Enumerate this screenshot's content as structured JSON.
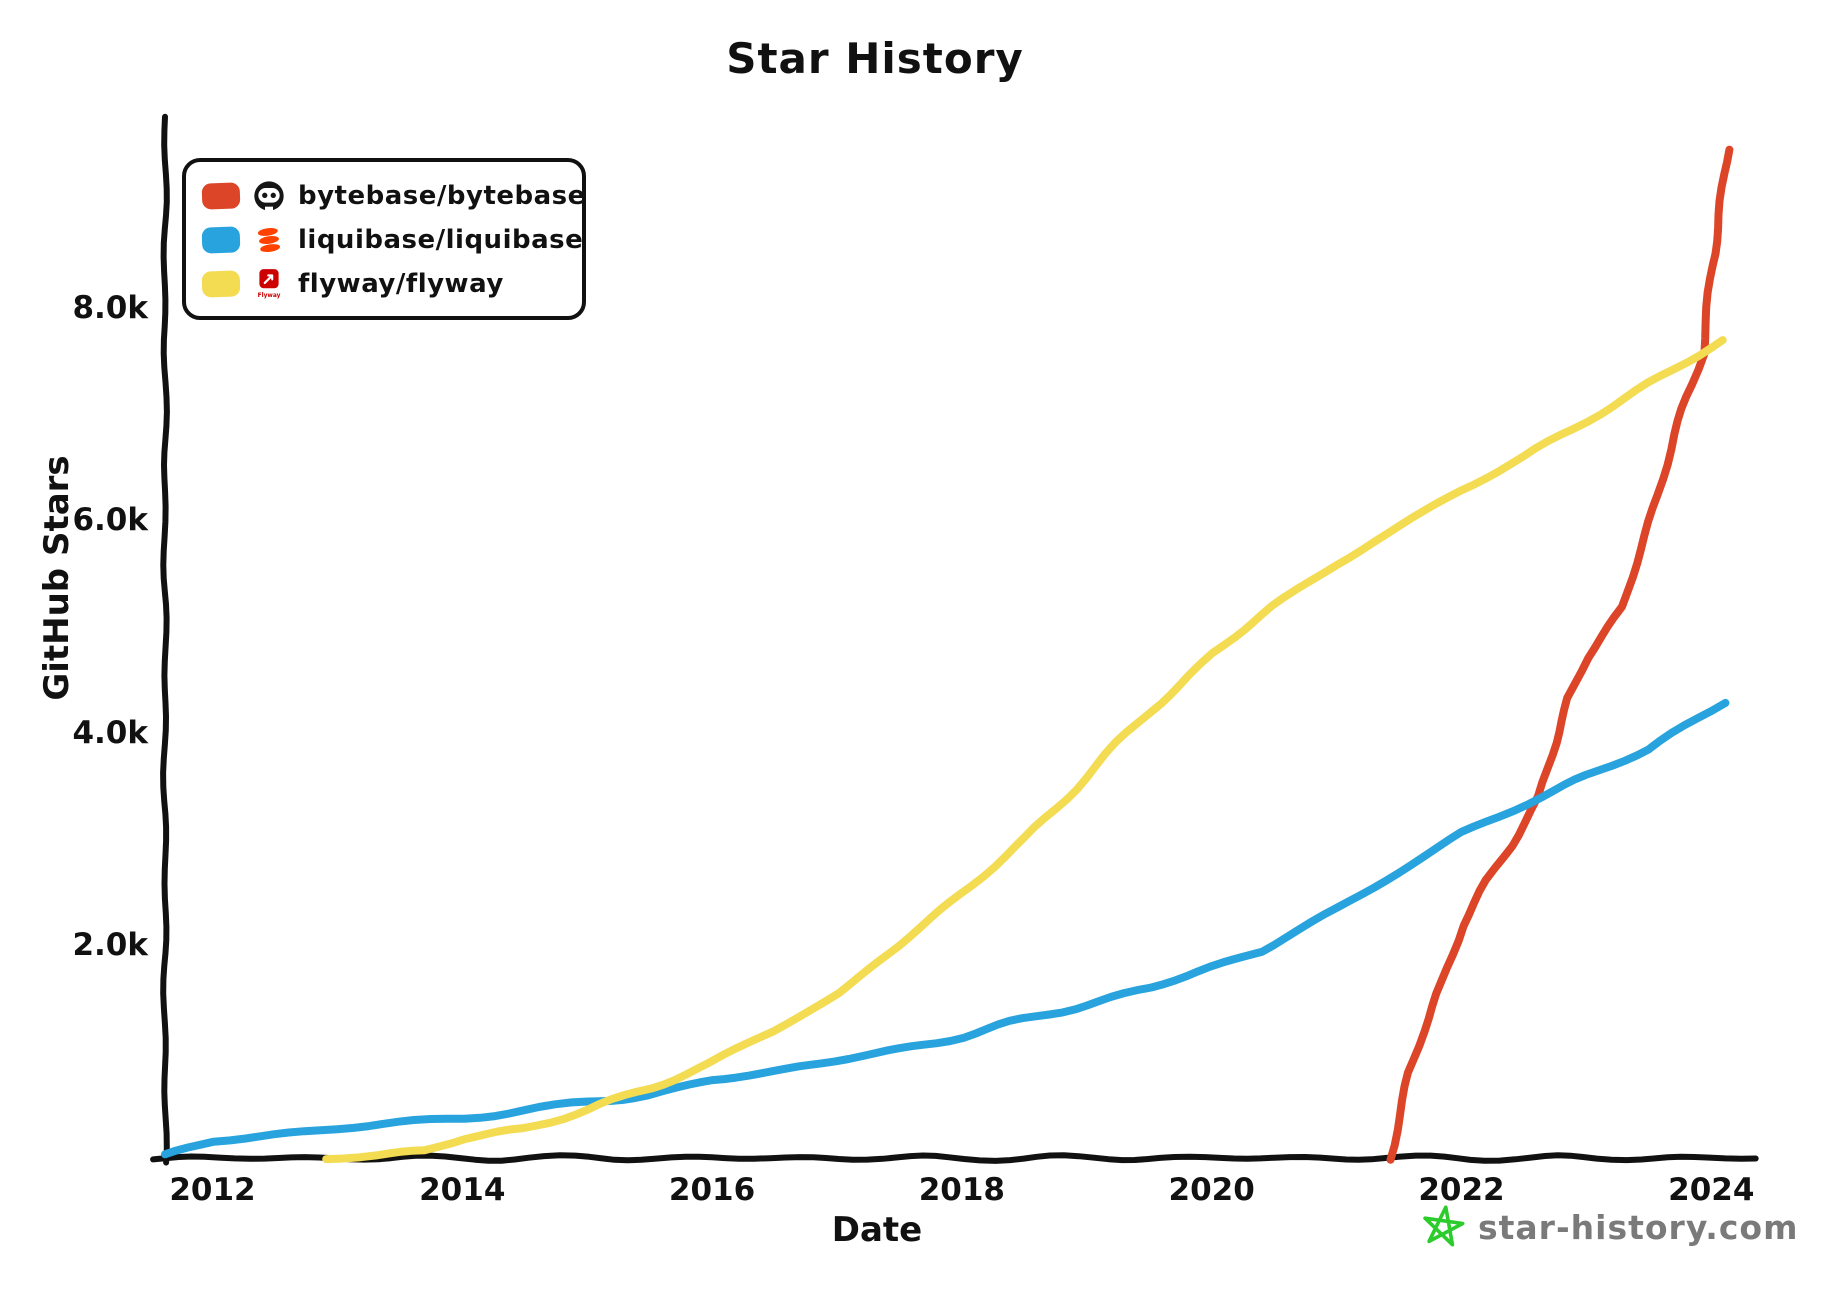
{
  "legend": {
    "items": [
      {
        "label": "bytebase/bytebase",
        "color": "#dd4528",
        "logo": "bytebase-logo"
      },
      {
        "label": "liquibase/liquibase",
        "color": "#28a3dd",
        "logo": "liquibase-logo"
      },
      {
        "label": "flyway/flyway",
        "color": "#f3db52",
        "logo": "flyway-logo",
        "logo_text": "Flyway"
      }
    ]
  },
  "watermark": {
    "text": "star-history.com",
    "icon": "star-icon",
    "icon_color": "#2bcc2b",
    "text_color": "#7a7a7a"
  },
  "chart_data": {
    "type": "line",
    "title": "Star History",
    "xlabel": "Date",
    "ylabel": "GitHub Stars",
    "xlim": [
      2011.58,
      2024.35
    ],
    "ylim": [
      0,
      9800
    ],
    "grid": false,
    "legend_position": "top-left",
    "x_ticks": {
      "values": [
        2012,
        2014,
        2016,
        2018,
        2020,
        2022,
        2024
      ],
      "labels": [
        "2012",
        "2014",
        "2016",
        "2018",
        "2020",
        "2022",
        "2024"
      ]
    },
    "y_ticks": {
      "values": [
        2000,
        4000,
        6000,
        8000
      ],
      "labels": [
        "2.0k",
        "4.0k",
        "6.0k",
        "8.0k"
      ]
    },
    "series": [
      {
        "name": "bytebase/bytebase",
        "color": "#dd4528",
        "points": [
          [
            2021.42,
            0
          ],
          [
            2021.5,
            400
          ],
          [
            2021.58,
            800
          ],
          [
            2021.7,
            1200
          ],
          [
            2021.85,
            1650
          ],
          [
            2022.0,
            2200
          ],
          [
            2022.2,
            2600
          ],
          [
            2022.4,
            2950
          ],
          [
            2022.63,
            3410
          ],
          [
            2022.75,
            3900
          ],
          [
            2022.85,
            4350
          ],
          [
            2023.0,
            4700
          ],
          [
            2023.3,
            5200
          ],
          [
            2023.5,
            6000
          ],
          [
            2023.7,
            6800
          ],
          [
            2023.85,
            7300
          ],
          [
            2023.94,
            7600
          ],
          [
            2024.0,
            8400
          ],
          [
            2024.06,
            8900
          ],
          [
            2024.14,
            9500
          ]
        ]
      },
      {
        "name": "liquibase/liquibase",
        "color": "#28a3dd",
        "points": [
          [
            2011.62,
            20
          ],
          [
            2012.0,
            160
          ],
          [
            2012.5,
            220
          ],
          [
            2013.0,
            280
          ],
          [
            2013.5,
            330
          ],
          [
            2014.0,
            380
          ],
          [
            2014.5,
            450
          ],
          [
            2015.0,
            520
          ],
          [
            2015.5,
            600
          ],
          [
            2016.0,
            730
          ],
          [
            2016.5,
            820
          ],
          [
            2017.0,
            920
          ],
          [
            2017.5,
            1020
          ],
          [
            2018.0,
            1150
          ],
          [
            2018.5,
            1300
          ],
          [
            2019.0,
            1450
          ],
          [
            2019.5,
            1600
          ],
          [
            2020.0,
            1800
          ],
          [
            2020.4,
            1950
          ],
          [
            2020.7,
            2150
          ],
          [
            2021.0,
            2350
          ],
          [
            2021.5,
            2700
          ],
          [
            2022.0,
            3050
          ],
          [
            2022.63,
            3410
          ],
          [
            2023.0,
            3600
          ],
          [
            2023.5,
            3850
          ],
          [
            2024.1,
            4300
          ]
        ]
      },
      {
        "name": "flyway/flyway",
        "color": "#f3db52",
        "points": [
          [
            2012.92,
            0
          ],
          [
            2013.3,
            30
          ],
          [
            2013.7,
            70
          ],
          [
            2014.0,
            180
          ],
          [
            2014.5,
            280
          ],
          [
            2015.0,
            450
          ],
          [
            2015.5,
            660
          ],
          [
            2016.0,
            900
          ],
          [
            2016.5,
            1200
          ],
          [
            2017.0,
            1550
          ],
          [
            2017.5,
            2000
          ],
          [
            2018.0,
            2500
          ],
          [
            2018.5,
            3000
          ],
          [
            2019.0,
            3600
          ],
          [
            2019.5,
            4200
          ],
          [
            2020.0,
            4750
          ],
          [
            2020.5,
            5200
          ],
          [
            2021.0,
            5600
          ],
          [
            2021.5,
            5950
          ],
          [
            2022.0,
            6300
          ],
          [
            2022.5,
            6600
          ],
          [
            2023.0,
            6950
          ],
          [
            2023.5,
            7300
          ],
          [
            2024.1,
            7700
          ]
        ]
      }
    ]
  }
}
